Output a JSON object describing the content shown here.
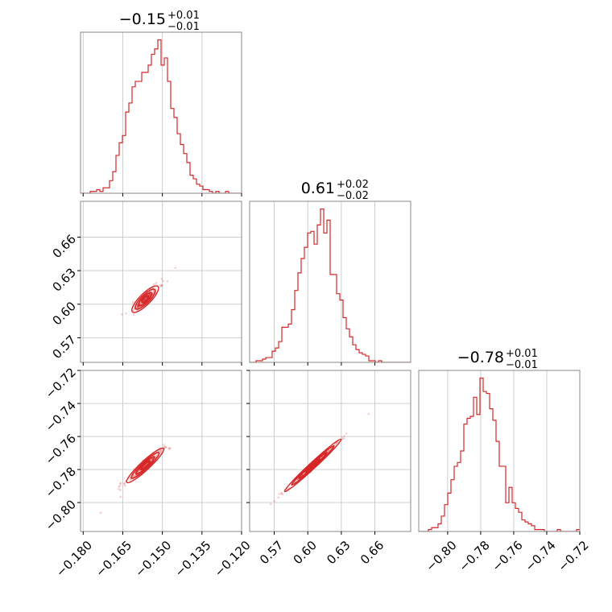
{
  "chart_data": {
    "type": "corner",
    "color": "#d62728",
    "grid": true,
    "titles": [
      {
        "main": "−0.15",
        "plus": "+0.01",
        "minus": "−0.01"
      },
      {
        "main": "0.61",
        "plus": "+0.02",
        "minus": "−0.02"
      },
      {
        "main": "−0.78",
        "plus": "+0.01",
        "minus": "−0.01"
      }
    ],
    "param_ranges": [
      [
        -0.181,
        -0.12
      ],
      [
        0.548,
        0.692
      ],
      [
        -0.8175,
        -0.72
      ]
    ],
    "ticks": [
      {
        "values": [
          -0.18,
          -0.165,
          -0.15,
          -0.135,
          -0.12
        ],
        "labels": [
          "−0.180",
          "−0.165",
          "−0.150",
          "−0.135",
          "−0.120"
        ]
      },
      {
        "values": [
          0.57,
          0.6,
          0.63,
          0.66
        ],
        "labels": [
          "0.57",
          "0.60",
          "0.63",
          "0.66"
        ]
      },
      {
        "values": [
          -0.8,
          -0.78,
          -0.76,
          -0.74,
          -0.72
        ],
        "labels": [
          "−0.80",
          "−0.78",
          "−0.76",
          "−0.74",
          "−0.72"
        ]
      }
    ],
    "y_ticks_row1": {
      "values": [
        0.57,
        0.6,
        0.63,
        0.66
      ],
      "labels": [
        "0.57",
        "0.60",
        "0.63",
        "0.66"
      ]
    },
    "y_ticks_row2": {
      "values": [
        -0.8,
        -0.78,
        -0.76,
        -0.74,
        -0.72
      ],
      "labels": [
        "−0.80",
        "−0.78",
        "−0.76",
        "−0.74",
        "−0.72"
      ]
    },
    "histograms": [
      {
        "param": 0,
        "bin_start": -0.181,
        "bin_width": 0.00122,
        "counts": [
          0,
          0,
          0,
          1,
          1,
          2,
          1,
          3,
          3,
          7,
          12,
          21,
          28,
          32,
          45,
          50,
          59,
          62,
          62,
          67,
          67,
          71,
          77,
          80,
          85,
          71,
          75,
          62,
          47,
          42,
          33,
          27,
          22,
          17,
          10,
          8,
          5,
          4,
          2,
          2,
          1,
          0,
          1,
          0,
          0,
          1,
          0,
          0,
          0,
          0
        ]
      },
      {
        "param": 1,
        "bin_start": 0.548,
        "bin_width": 0.00288,
        "counts": [
          0,
          0,
          1,
          1,
          2,
          3,
          3,
          7,
          9,
          13,
          22,
          22,
          24,
          33,
          45,
          56,
          65,
          72,
          81,
          82,
          74,
          86,
          96,
          81,
          89,
          55,
          55,
          43,
          39,
          28,
          21,
          16,
          11,
          8,
          6,
          5,
          4,
          1,
          1,
          0,
          1,
          0,
          0,
          0,
          0,
          0,
          0,
          0,
          0,
          0
        ]
      },
      {
        "param": 2,
        "bin_start": -0.8175,
        "bin_width": 0.00195,
        "counts": [
          0,
          0,
          0,
          1,
          2,
          2,
          4,
          8,
          14,
          20,
          27,
          34,
          36,
          42,
          56,
          59,
          60,
          70,
          61,
          80,
          73,
          72,
          64,
          58,
          47,
          34,
          34,
          15,
          23,
          15,
          12,
          10,
          6,
          5,
          4,
          3,
          1,
          1,
          1,
          0,
          0,
          0,
          0,
          1,
          0,
          0,
          0,
          0,
          0,
          1
        ]
      }
    ],
    "pairs": [
      {
        "x_param": 0,
        "y_param": 1,
        "center": [
          -0.1565,
          0.6045
        ],
        "slope": 2.36,
        "sigma_along": 0.0062,
        "sigma_across": 0.0007
      },
      {
        "x_param": 0,
        "y_param": 2,
        "center": [
          -0.1565,
          -0.7775
        ],
        "slope": 1.48,
        "sigma_along": 0.0062,
        "sigma_across": 0.0006
      },
      {
        "x_param": 1,
        "y_param": 2,
        "center": [
          0.6045,
          -0.7775
        ],
        "slope": 0.627,
        "sigma_along": 0.0149,
        "sigma_across": 0.0004
      }
    ]
  }
}
